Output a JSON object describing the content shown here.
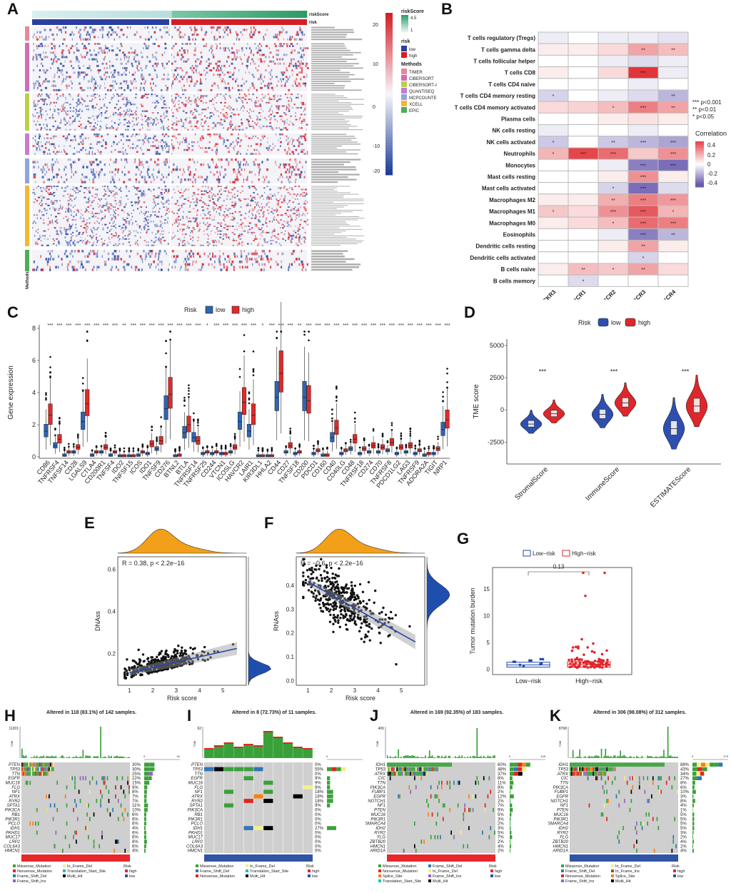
{
  "panels": {
    "A": "A",
    "B": "B",
    "C": "C",
    "D": "D",
    "E": "E",
    "F": "F",
    "G": "G",
    "H": "H",
    "I": "I",
    "J": "J",
    "K": "K"
  },
  "panelA": {
    "row_titles": [
      "riskScore",
      "risk"
    ],
    "legend_riskScore_title": "riskScore",
    "legend_riskScore_ticks": [
      "4.5",
      "1"
    ],
    "legend_risk_title": "risk",
    "legend_risk_items": [
      {
        "label": "low",
        "color": "#2a3fa0"
      },
      {
        "label": "high",
        "color": "#d21f26"
      }
    ],
    "legend_methods_title": "Methods",
    "legend_methods_items": [
      {
        "label": "TIMER",
        "color": "#e8889a"
      },
      {
        "label": "CIBERSORT",
        "color": "#cf6fb7"
      },
      {
        "label": "CIBERSORT-ABS",
        "color": "#b8d04a"
      },
      {
        "label": "QUANTISEQ",
        "color": "#c97bd0"
      },
      {
        "label": "MCPCOUNTER",
        "color": "#8fa5e0"
      },
      {
        "label": "XCELL",
        "color": "#f2b833"
      },
      {
        "label": "EPIC",
        "color": "#4cae55"
      }
    ],
    "colorbar_ticks": [
      "20",
      "10",
      "0",
      "-10",
      "-20"
    ],
    "methods_axis_label": "Methods"
  },
  "panelB": {
    "rows": [
      "T cells regulatory (Tregs)",
      "T cells gamma delta",
      "T cells follicular helper",
      "T cells CD8",
      "T cells CD4 naive",
      "T cells CD4 memory resting",
      "T cells CD4 memory activated",
      "Plasma cells",
      "NK cells resting",
      "NK cells activated",
      "Neutrophils",
      "Monocytes",
      "Mast cells resting",
      "Mast cells activated",
      "Macrophages M2",
      "Macrophages M1",
      "Macrophages M0",
      "Eosinophils",
      "Dendritic cells resting",
      "Dendritic cells activated",
      "B cells naive",
      "B cells memory"
    ],
    "cols": [
      "ACKR3",
      "CXCR1",
      "CXCR2",
      "CXCR3",
      "CXCR4"
    ],
    "values": [
      [
        -0.05,
        0.0,
        -0.05,
        -0.05,
        -0.08
      ],
      [
        0.05,
        0.05,
        0.1,
        0.25,
        0.18
      ],
      [
        0.0,
        0.0,
        -0.05,
        -0.1,
        -0.05
      ],
      [
        0.05,
        0.0,
        0.1,
        0.55,
        -0.05
      ],
      [
        0.0,
        0.0,
        0.0,
        -0.05,
        0.0
      ],
      [
        -0.12,
        0.0,
        -0.05,
        -0.1,
        -0.2
      ],
      [
        0.1,
        0.12,
        0.18,
        0.35,
        0.25
      ],
      [
        0.0,
        0.0,
        0.05,
        0.08,
        0.05
      ],
      [
        -0.05,
        0.0,
        0.0,
        -0.05,
        0.0
      ],
      [
        -0.15,
        0.0,
        -0.15,
        -0.2,
        -0.25
      ],
      [
        0.2,
        0.5,
        0.4,
        0.15,
        0.3
      ],
      [
        0.0,
        0.0,
        -0.05,
        -0.35,
        -0.4
      ],
      [
        0.0,
        0.0,
        0.05,
        0.3,
        0.05
      ],
      [
        0.0,
        0.0,
        -0.12,
        -0.4,
        -0.1
      ],
      [
        0.05,
        0.05,
        0.22,
        0.35,
        0.28
      ],
      [
        0.15,
        0.1,
        0.3,
        0.45,
        0.2
      ],
      [
        0.05,
        0.1,
        0.18,
        0.4,
        0.35
      ],
      [
        0.0,
        0.0,
        -0.05,
        -0.35,
        -0.2
      ],
      [
        0.0,
        0.0,
        0.05,
        0.25,
        0.05
      ],
      [
        0.0,
        0.0,
        0.0,
        -0.12,
        0.0
      ],
      [
        0.05,
        0.18,
        0.15,
        0.25,
        0.1
      ],
      [
        0.0,
        -0.1,
        0.0,
        0.0,
        0.0
      ]
    ],
    "stars": [
      [
        "",
        "",
        "",
        "",
        ""
      ],
      [
        "",
        "",
        "",
        "**",
        "**"
      ],
      [
        "",
        "",
        "",
        "",
        ""
      ],
      [
        "",
        "",
        "",
        "***",
        ""
      ],
      [
        "",
        "",
        "",
        "",
        ""
      ],
      [
        "*",
        "",
        "",
        "",
        "**"
      ],
      [
        "",
        "",
        "*",
        "***",
        "**"
      ],
      [
        "",
        "",
        "",
        "",
        ""
      ],
      [
        "",
        "",
        "",
        "",
        ""
      ],
      [
        "*",
        "",
        "**",
        "***",
        "***"
      ],
      [
        "*",
        "***",
        "***",
        "",
        "***"
      ],
      [
        "",
        "",
        "",
        "***",
        "***"
      ],
      [
        "",
        "",
        "",
        "***",
        ""
      ],
      [
        "",
        "",
        "*",
        "***",
        ""
      ],
      [
        "",
        "",
        "**",
        "***",
        "***"
      ],
      [
        "*",
        "",
        "***",
        "***",
        "*"
      ],
      [
        "",
        "",
        "*",
        "***",
        "***"
      ],
      [
        "",
        "",
        "",
        "***",
        "**"
      ],
      [
        "",
        "",
        "",
        "**",
        ""
      ],
      [
        "",
        "",
        "",
        "*",
        ""
      ],
      [
        "",
        "**",
        "*",
        "**",
        ""
      ],
      [
        "",
        "*",
        "",
        "",
        ""
      ]
    ],
    "sig_legend": [
      "*** p<0.001",
      "** p<0.01",
      "* p<0.05"
    ],
    "colorbar_title": "Correlation",
    "colorbar_ticks": [
      "0.4",
      "0.2",
      "0",
      "-0.2",
      "-0.4"
    ]
  },
  "panelC": {
    "legend_title": "Risk",
    "legend_low": "low",
    "legend_high": "high",
    "ylabel": "Gene expression",
    "yticks": [
      "8",
      "6",
      "4",
      "2",
      "0"
    ],
    "genes": [
      "CD86",
      "TNFRSF4",
      "TNFSF14",
      "CD28",
      "LGALS9",
      "CTLA4",
      "CD200R1",
      "TNFSF4",
      "IDO2",
      "TNFSF15",
      "ICOS",
      "IDO1",
      "TNFSF9",
      "CD276",
      "BTNL2",
      "BTLA",
      "TNFRSF14",
      "TNFRSF25",
      "CD244",
      "VTCN1",
      "ICOSLG",
      "HAVCR2",
      "LAIR1",
      "KIR3DL1",
      "HHLA2",
      "CD44",
      "CD27",
      "TNFSF18",
      "CD200",
      "PDCD1",
      "CD160",
      "CD40",
      "CD40LG",
      "CD48",
      "TNFRSF18",
      "CD274",
      "CD70",
      "TNFRSF8",
      "PDCD1LG2",
      "LAG3",
      "TNFRSF9",
      "ADORA2A",
      "TIGIT",
      "NRP1"
    ],
    "low_median": [
      1.6,
      0.7,
      0.1,
      0.3,
      2.2,
      0.1,
      0.3,
      0.1,
      0.05,
      0.05,
      0.1,
      0.2,
      0.5,
      3.0,
      0.05,
      1.5,
      1.2,
      0.2,
      0.2,
      0.2,
      0.3,
      2.2,
      1.6,
      0.05,
      0.05,
      3.7,
      0.3,
      0.2,
      3.7,
      0.2,
      0.1,
      1.2,
      0.2,
      0.5,
      0.2,
      0.3,
      0.3,
      0.4,
      0.2,
      0.3,
      0.2,
      0.1,
      0.2,
      1.7
    ],
    "high_median": [
      2.6,
      1.1,
      0.3,
      0.6,
      3.3,
      0.3,
      0.6,
      0.3,
      0.05,
      0.05,
      0.3,
      0.8,
      1.0,
      3.9,
      0.1,
      2.0,
      1.0,
      0.3,
      0.3,
      0.2,
      0.6,
      3.4,
      2.6,
      0.05,
      0.05,
      5.2,
      0.7,
      0.3,
      3.5,
      0.4,
      0.1,
      1.8,
      0.4,
      1.1,
      0.5,
      0.7,
      0.6,
      0.9,
      0.6,
      0.7,
      0.4,
      0.2,
      0.5,
      2.3
    ],
    "sig": [
      "***",
      "***",
      "***",
      "***",
      "***",
      "***",
      "***",
      "***",
      "**",
      "***",
      "***",
      "***",
      "***",
      "***",
      "***",
      "***",
      "***",
      "*",
      "***",
      "***",
      "***",
      "***",
      "***",
      "*",
      "***",
      "***",
      "***",
      "**",
      "***",
      "***",
      "***",
      "***",
      "***",
      "***",
      "***",
      "***",
      "***",
      "***",
      "***",
      "***",
      "***",
      "***",
      "***",
      "***"
    ]
  },
  "panelD": {
    "legend_title": "Risk",
    "legend_low": "low",
    "legend_high": "high",
    "ylabel": "TME score",
    "yticks": [
      "5000",
      "2500",
      "0",
      "-2500"
    ],
    "groups": [
      "StromalScore",
      "ImmuneScore",
      "ESTIMATEScore"
    ],
    "low_median": [
      -1100,
      -350,
      -1450
    ],
    "high_median": [
      -300,
      550,
      300
    ],
    "sig": [
      "***",
      "***",
      "***"
    ]
  },
  "panelE": {
    "annotation": "R = 0.38, p < 2.2e−16",
    "xlabel": "Risk score",
    "ylabel": "DNAss",
    "xticks": [
      "1",
      "2",
      "3",
      "4",
      "5"
    ],
    "yticks": [
      "0.6",
      "0.4",
      "0.2"
    ]
  },
  "panelF": {
    "annotation": "R = −0.6, p < 2.2e−16",
    "xlabel": "Risk score",
    "ylabel": "RNAss",
    "xticks": [
      "1",
      "2",
      "3",
      "4",
      "5"
    ],
    "yticks": [
      "0.4",
      "0.3",
      "0.2",
      "0.1",
      "0.0"
    ]
  },
  "panelG": {
    "legend_low": "Low−risk",
    "legend_high": "High−risk",
    "pvalue": "0.13",
    "ylabel": "Tumor mutation burden",
    "yticks": [
      "15",
      "10",
      "5",
      "0"
    ],
    "xticks": [
      "Low−risk",
      "High−risk"
    ]
  },
  "oncoplots": [
    {
      "id": "H",
      "title": "Altered in 118 (83.1%) of 142 samples.",
      "tmb_top": "11201",
      "side_max": "42",
      "genes": [
        "PTEN",
        "TP53",
        "TTN",
        "EGFR",
        "MUC16",
        "FLG",
        "NF1",
        "ATRX",
        "RYR2",
        "SPTA1",
        "PIK3CA",
        "RB1",
        "PIK3R1",
        "PCLO",
        "IDH1",
        "PKHD1",
        "MUC17",
        "LRP2",
        "COL6A3",
        "HMCN1"
      ],
      "pcts": [
        "30%",
        "30%",
        "25%",
        "22%",
        "15%",
        "9%",
        "8%",
        "7%",
        "7%",
        "11%",
        "10%",
        "6%",
        "6%",
        "6%",
        "4%",
        "6%",
        "6%",
        "8%",
        "6%",
        "4%"
      ],
      "risk_color": "#e8272b",
      "legend": [
        "Missense_Mutation",
        "In_Frame_Del",
        "Nonsense_Mutation",
        "Translation_Start_Site",
        "Frame_Shift_Del",
        "Multi_Hit",
        "Frame_Shift_Ins"
      ],
      "risk_label": "Risk",
      "risk_high": "high",
      "risk_low": "low"
    },
    {
      "id": "I",
      "title": "Altered in 8 (72.73%) of 11 samples.",
      "tmb_top": "62",
      "side_max": "",
      "genes": [
        "PTEN",
        "TP53",
        "TTN",
        "EGFR",
        "MUC16",
        "FLG",
        "NF1",
        "ATRX",
        "RYR2",
        "SPTA1",
        "PIK3CA",
        "RB1",
        "PIK3R1",
        "PCLO",
        "IDH1",
        "PKHD1",
        "MUC17",
        "LRP2",
        "COL6A3",
        "HMCN1"
      ],
      "pcts": [
        "0%",
        "55%",
        "0%",
        "9%",
        "9%",
        "9%",
        "18%",
        "18%",
        "18%",
        "9%",
        "0%",
        "0%",
        "0%",
        "0%",
        "27%",
        "0%",
        "0%",
        "0%",
        "0%",
        "0%"
      ],
      "risk_color": "#2f55a4",
      "legend": [
        "Missense_Mutation",
        "In_Frame_Del",
        "Frame_Shift_Del",
        "Translation_Start_Site",
        "Nonsense_Mutation",
        "Multi_Hit"
      ],
      "risk_label": "Risk",
      "risk_high": "high",
      "risk_low": "low"
    },
    {
      "id": "J",
      "title": "Altered in 169 (92.35%) of 183 samples.",
      "tmb_top": "406",
      "side_max": "109",
      "genes": [
        "IDH1",
        "TP53",
        "ATRX",
        "CIC",
        "TTN",
        "PIK3CA",
        "FUBP1",
        "EGFR",
        "NOTCH1",
        "NF1",
        "PTEN",
        "MUC16",
        "PIK3R1",
        "SMARCA4",
        "IDH2",
        "RYR2",
        "FLG",
        "ZBTB20",
        "HMCN1",
        "ARID1A"
      ],
      "pcts": [
        "60%",
        "48%",
        "37%",
        "8%",
        "11%",
        "8%",
        "2%",
        "12%",
        "2%",
        "7%",
        "9%",
        "5%",
        "3%",
        "2%",
        "3%",
        "5%",
        "7%",
        "2%",
        "4%",
        "2%"
      ],
      "risk_color": "#e8272b",
      "legend": [
        "Missense_Mutation",
        "Frame_Shift_Del",
        "Nonsense_Mutation",
        "In_Frame_Del",
        "Splice_Site",
        "Frame_Shift_Ins",
        "Translation_Start_Site",
        "Multi_Hit"
      ],
      "risk_label": "Risk",
      "risk_high": "high",
      "risk_low": "low"
    },
    {
      "id": "K",
      "title": "Altered in 306 (98.08%) of 312 samples.",
      "tmb_top": "8768",
      "side_max": "273",
      "genes": [
        "IDH1",
        "TP53",
        "ATRX",
        "CIC",
        "TTN",
        "PIK3CA",
        "FUBP1",
        "EGFR",
        "NOTCH1",
        "NF1",
        "PTEN",
        "MUC16",
        "PIK3R1",
        "SMARCA4",
        "IDH2",
        "RYR2",
        "FLG",
        "ZBTB20",
        "HMCN1",
        "ARID1A"
      ],
      "pcts": [
        "88%",
        "43%",
        "34%",
        "27%",
        "8%",
        "6%",
        "10%",
        "3%",
        "8%",
        "4%",
        "1%",
        "5%",
        "5%",
        "5%",
        "5%",
        "3%",
        "2%",
        "4%",
        "2%",
        "4%"
      ],
      "risk_color": "#2f55a4",
      "legend": [
        "Missense_Mutation",
        "In_Frame_Del",
        "Frame_Shift_Del",
        "In_Frame_Ins",
        "Nonsense_Mutation",
        "Splice_Site",
        "Frame_Shift_Ins",
        "Multi_Hit"
      ],
      "risk_label": "Risk",
      "risk_high": "high",
      "risk_low": "low"
    }
  ],
  "mutation_colors": {
    "Missense_Mutation": "#3aa13a",
    "Nonsense_Mutation": "#e0261f",
    "Frame_Shift_Del": "#2f77b4",
    "Frame_Shift_Ins": "#9467bd",
    "In_Frame_Del": "#f5ee8a",
    "In_Frame_Ins": "#8c564b",
    "Splice_Site": "#ff7f0e",
    "Translation_Start_Site": "#17becf",
    "Multi_Hit": "#000000"
  }
}
